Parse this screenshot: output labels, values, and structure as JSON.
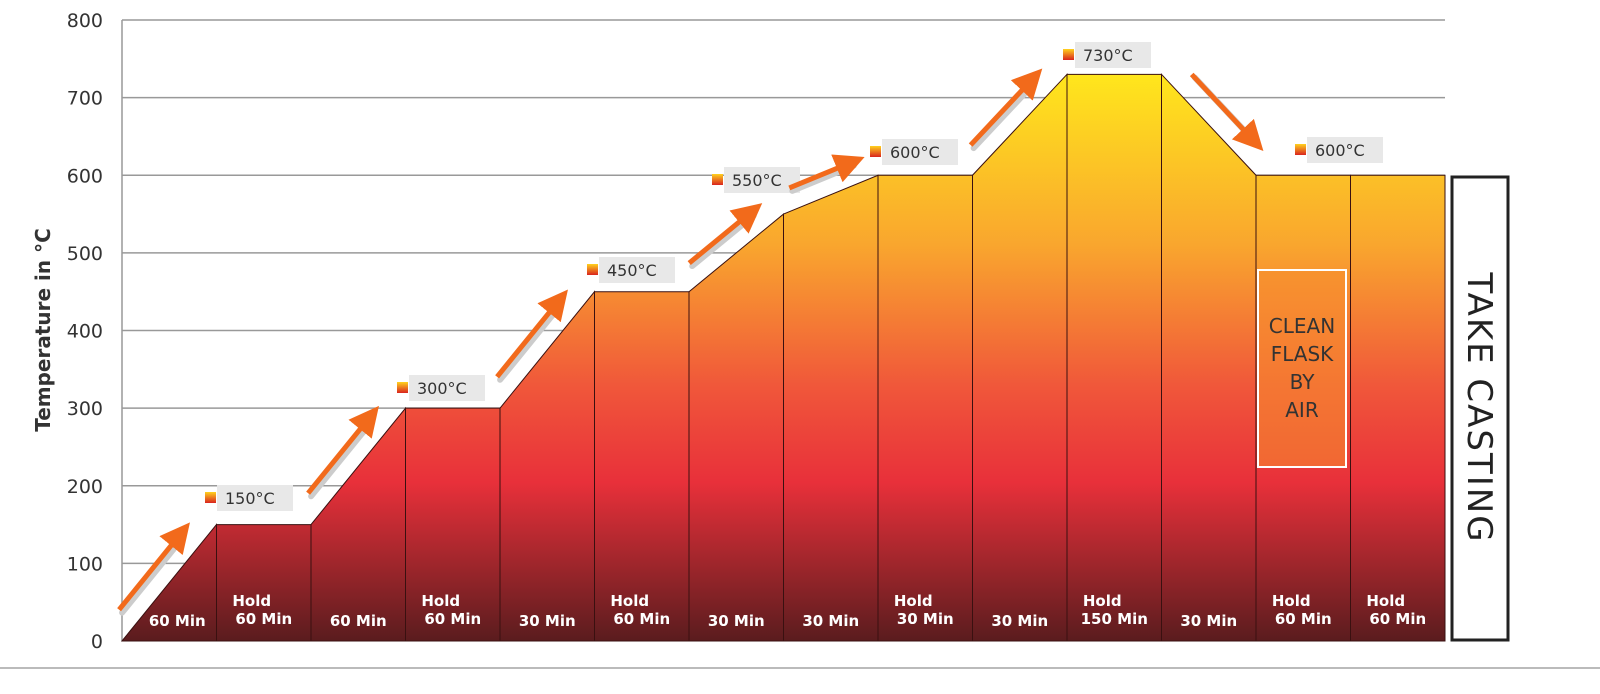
{
  "chart_data": {
    "type": "area",
    "ylabel": "Temperature in °C",
    "ylim": [
      0,
      800
    ],
    "yticks": [
      "0",
      "100",
      "200",
      "300",
      "400",
      "500",
      "600",
      "700",
      "800"
    ],
    "grid": true,
    "segments": [
      {
        "lines": [
          "",
          "60 Min"
        ],
        "start": 0,
        "end": 150
      },
      {
        "lines": [
          "Hold",
          "60 Min"
        ],
        "start": 150,
        "end": 150
      },
      {
        "lines": [
          "",
          "60 Min"
        ],
        "start": 150,
        "end": 300
      },
      {
        "lines": [
          "Hold",
          "60 Min"
        ],
        "start": 300,
        "end": 300
      },
      {
        "lines": [
          "",
          "30 Min"
        ],
        "start": 300,
        "end": 450
      },
      {
        "lines": [
          "Hold",
          "60 Min"
        ],
        "start": 450,
        "end": 450
      },
      {
        "lines": [
          "",
          "30 Min"
        ],
        "start": 450,
        "end": 550
      },
      {
        "lines": [
          "",
          "30 Min"
        ],
        "start": 550,
        "end": 600
      },
      {
        "lines": [
          "Hold",
          "30 Min"
        ],
        "start": 600,
        "end": 600
      },
      {
        "lines": [
          "",
          "30 Min"
        ],
        "start": 600,
        "end": 730
      },
      {
        "lines": [
          "Hold",
          "150 Min"
        ],
        "start": 730,
        "end": 730
      },
      {
        "lines": [
          "",
          "30 Min"
        ],
        "start": 730,
        "end": 600
      },
      {
        "lines": [
          "Hold",
          "60 Min"
        ],
        "start": 600,
        "end": 600
      },
      {
        "lines": [
          "Hold",
          "60 Min"
        ],
        "start": 600,
        "end": 600
      }
    ],
    "annotations": [
      "150°C",
      "300°C",
      "450°C",
      "550°C",
      "600°C",
      "730°C",
      "600°C"
    ],
    "callout_box": [
      "CLEAN",
      "FLASK",
      "BY",
      "AIR"
    ],
    "side_label": "TAKE CASTING",
    "colors": {
      "top": "#ffe61c",
      "mid": "#f7962e",
      "red": "#e8303a",
      "bottom": "#5a1c1e",
      "arrow": "#f26a1b"
    }
  }
}
